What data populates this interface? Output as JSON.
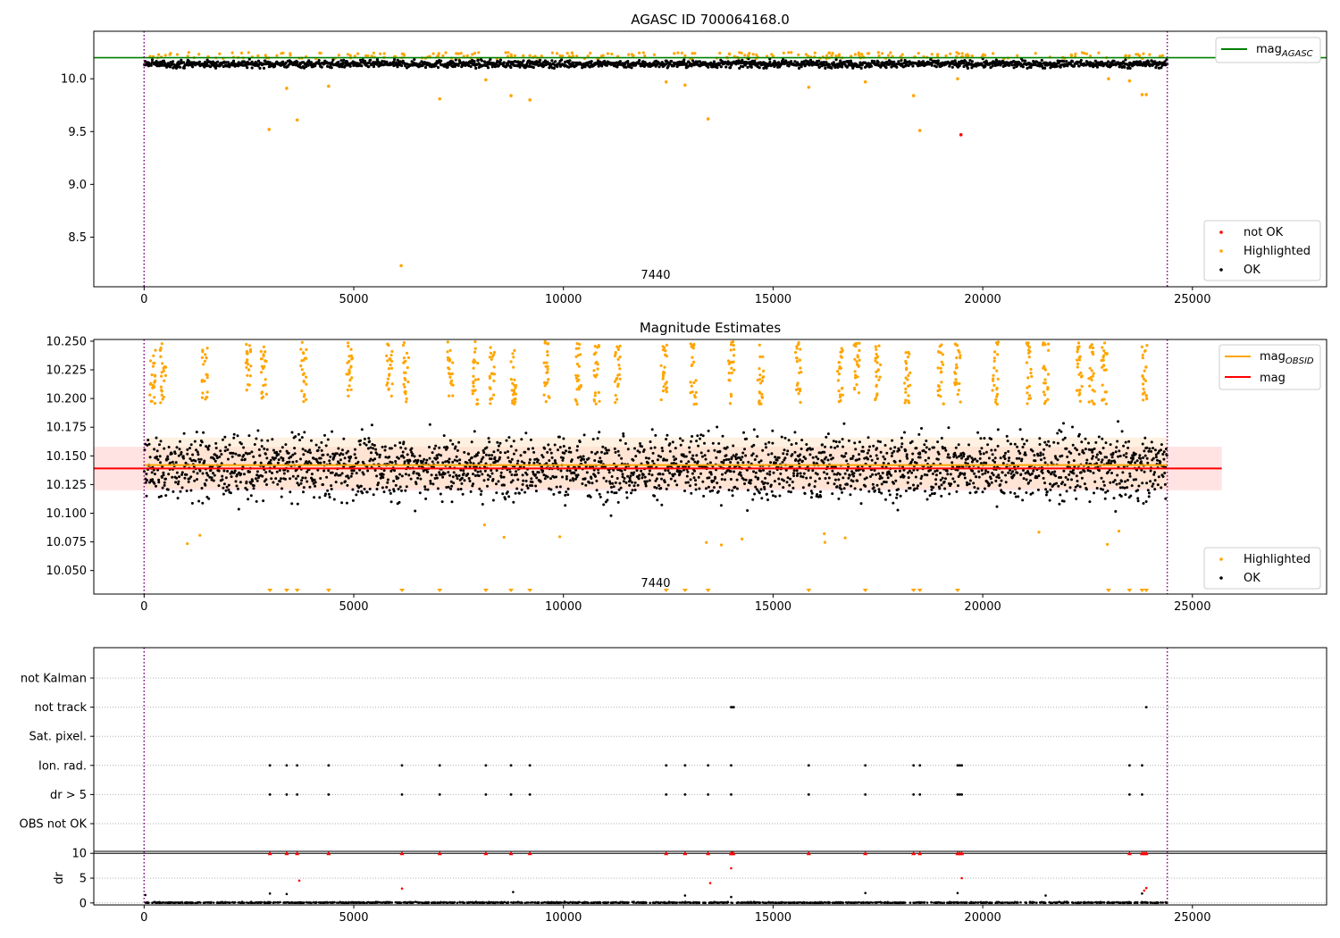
{
  "colors": {
    "ok": "#000000",
    "highlighted": "#ffa500",
    "not_ok": "#ff0000",
    "mag_agasc": "#008000",
    "mag_obsid": "#ffa500",
    "mag": "#ff0000",
    "boundary": "#800080",
    "band_mag": "#ffcccc",
    "band_obsid": "#ffe4c4"
  },
  "chart_data": [
    {
      "type": "scatter",
      "title": "AGASC ID 700064168.0",
      "xlim": [
        -1200,
        28200
      ],
      "ylim": [
        8.03,
        10.45
      ],
      "x_ticks": [
        0,
        5000,
        10000,
        15000,
        20000,
        25000
      ],
      "y_ticks": [
        10.0,
        9.5,
        9.0,
        8.5
      ],
      "y_tick_labels": [
        "10.0",
        "9.5",
        "9.0",
        "8.5"
      ],
      "obsid_label": "7440",
      "obsid_label_x": 12200,
      "boundaries_x": [
        0,
        24400
      ],
      "legend_upper": {
        "position": "top-right",
        "label_main": "mag",
        "label_sub": "AGASC"
      },
      "legend_lower": {
        "position": "bottom-right",
        "entries": [
          "not OK",
          "Highlighted",
          "OK"
        ]
      },
      "mag_agasc": 10.2,
      "ok_band": {
        "center": 10.14,
        "spread": 0.025,
        "x_range": [
          0,
          24400
        ]
      },
      "highlighted_points": [
        [
          2980,
          9.52
        ],
        [
          3400,
          9.91
        ],
        [
          3650,
          9.61
        ],
        [
          4400,
          9.93
        ],
        [
          6130,
          8.23
        ],
        [
          7050,
          9.81
        ],
        [
          8150,
          9.99
        ],
        [
          8750,
          9.84
        ],
        [
          9200,
          9.8
        ],
        [
          12450,
          9.97
        ],
        [
          12900,
          9.94
        ],
        [
          13450,
          9.62
        ],
        [
          15850,
          9.92
        ],
        [
          17200,
          9.97
        ],
        [
          18350,
          9.84
        ],
        [
          18500,
          9.51
        ],
        [
          19400,
          10.0
        ],
        [
          23000,
          10.0
        ],
        [
          23500,
          9.98
        ],
        [
          23800,
          9.85
        ],
        [
          23900,
          9.85
        ]
      ],
      "not_ok_points": [
        [
          19480,
          9.47
        ]
      ]
    },
    {
      "type": "scatter",
      "title": "Magnitude Estimates",
      "xlim": [
        -1200,
        28200
      ],
      "ylim": [
        10.0295,
        10.2515
      ],
      "x_ticks": [
        0,
        5000,
        10000,
        15000,
        20000,
        25000
      ],
      "y_ticks": [
        10.25,
        10.225,
        10.2,
        10.175,
        10.15,
        10.125,
        10.1,
        10.075,
        10.05
      ],
      "y_tick_labels": [
        "10.250",
        "10.225",
        "10.200",
        "10.175",
        "10.150",
        "10.125",
        "10.100",
        "10.075",
        "10.050"
      ],
      "obsid_label": "7440",
      "obsid_label_x": 12200,
      "boundaries_x": [
        0,
        24400
      ],
      "legend_upper": {
        "position": "top-right",
        "entries": [
          {
            "label_main": "mag",
            "label_sub": "OBSID"
          },
          {
            "label_main": "mag",
            "label_sub": ""
          }
        ]
      },
      "legend_lower": {
        "position": "bottom-right",
        "entries": [
          "Highlighted",
          "OK"
        ]
      },
      "mag_line": 10.139,
      "mag_band": [
        10.12,
        10.158
      ],
      "mag_band_x": [
        -1200,
        25700
      ],
      "mag_obsid_line": 10.142,
      "mag_obsid_band": [
        10.122,
        10.166
      ],
      "mag_obsid_x": [
        0,
        24400
      ],
      "ok_band": {
        "center": 10.14,
        "spread": 0.02,
        "x_range": [
          0,
          24400
        ]
      },
      "highlight_clusters": [
        200,
        450,
        1450,
        2500,
        2850,
        3800,
        4900,
        5850,
        6250,
        7300,
        7900,
        8300,
        8800,
        9600,
        10350,
        10800,
        11300,
        12400,
        13100,
        14000,
        14700,
        15600,
        16600,
        17000,
        17500,
        18200,
        19000,
        19400,
        20300,
        21100,
        21500,
        22300,
        22600,
        22900,
        23850
      ],
      "highlight_low_markers": [
        3000,
        3400,
        3650,
        4400,
        6150,
        7050,
        8150,
        8750,
        9200,
        12450,
        12900,
        13450,
        15850,
        17200,
        18350,
        18500,
        19400,
        23000,
        23500,
        23800,
        23900
      ]
    },
    {
      "type": "scatter",
      "title": "",
      "xlim": [
        -1200,
        28200
      ],
      "x_ticks": [
        0,
        5000,
        10000,
        15000,
        20000,
        25000
      ],
      "boundaries_x": [
        0,
        24400
      ],
      "flag_rows": [
        "not Kalman",
        "not track",
        "Sat. pixel.",
        "Ion. rad.",
        "dr > 5",
        "OBS not OK"
      ],
      "flag_points": {
        "not track": [
          14000,
          14030,
          14060,
          23900
        ],
        "Ion. rad.": [
          3000,
          3400,
          3650,
          4400,
          6150,
          7050,
          8150,
          8750,
          9200,
          12450,
          12900,
          13450,
          14000,
          15850,
          17200,
          18350,
          18500,
          19400,
          19450,
          19500,
          23500,
          23800
        ],
        "dr > 5": [
          3000,
          3400,
          3650,
          4400,
          6150,
          7050,
          8150,
          8750,
          9200,
          12450,
          12900,
          13450,
          14000,
          15850,
          17200,
          18350,
          18500,
          19400,
          19450,
          19500,
          23500,
          23800
        ]
      },
      "dr_axis": {
        "ylabel": "dr",
        "ylim": [
          -0.4,
          10.4
        ],
        "y_ticks": [
          0,
          5,
          10
        ],
        "y_tick_labels": [
          "0",
          "5",
          "10"
        ]
      },
      "dr_capped_points": [
        3000,
        3400,
        3650,
        4400,
        6150,
        7050,
        8150,
        8750,
        9200,
        12450,
        12900,
        13450,
        14000,
        14020,
        14050,
        15850,
        17200,
        18350,
        18500,
        19400,
        19450,
        19500,
        23500,
        23800,
        23850,
        23900
      ],
      "dr_red_points": [
        [
          3700,
          4.5
        ],
        [
          6150,
          2.9
        ],
        [
          13500,
          4.0
        ],
        [
          14000,
          7.0
        ],
        [
          19500,
          5.0
        ],
        [
          23850,
          2.5
        ],
        [
          23900,
          3.0
        ]
      ],
      "dr_black_points": [
        [
          3000,
          1.9
        ],
        [
          3400,
          1.8
        ],
        [
          8800,
          2.2
        ],
        [
          12900,
          1.5
        ],
        [
          14000,
          1.2
        ],
        [
          17200,
          2.0
        ],
        [
          19400,
          2.0
        ],
        [
          21500,
          1.5
        ],
        [
          23800,
          1.9
        ],
        [
          30,
          1.6
        ]
      ]
    }
  ]
}
